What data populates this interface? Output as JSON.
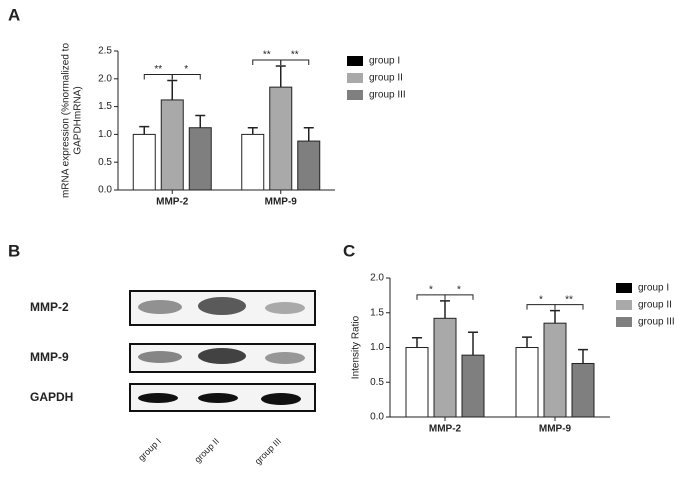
{
  "chart_data": [
    {
      "type": "bar",
      "panel": "A",
      "ylabel": [
        "mRNA expression (%normalized to",
        "GAPDHmRNA)"
      ],
      "categories": [
        "MMP-2",
        "MMP-9"
      ],
      "series": [
        {
          "name": "group I",
          "color": "#ffffff",
          "legend_color": "#000000",
          "values": [
            1.0,
            1.0
          ],
          "errors": [
            0.14,
            0.12
          ]
        },
        {
          "name": "group II",
          "color": "#a9a9a9",
          "legend_color": "#a9a9a9",
          "values": [
            1.62,
            1.85
          ],
          "errors": [
            0.35,
            0.38
          ]
        },
        {
          "name": "group III",
          "color": "#7f7f7f",
          "legend_color": "#7f7f7f",
          "values": [
            1.12,
            0.88
          ],
          "errors": [
            0.22,
            0.24
          ]
        }
      ],
      "significance": [
        {
          "category": "MMP-2",
          "pair": [
            "group I",
            "group II"
          ],
          "label": "**"
        },
        {
          "category": "MMP-2",
          "pair": [
            "group II",
            "group III"
          ],
          "label": "*"
        },
        {
          "category": "MMP-9",
          "pair": [
            "group I",
            "group II"
          ],
          "label": "**"
        },
        {
          "category": "MMP-9",
          "pair": [
            "group II",
            "group III"
          ],
          "label": "**"
        }
      ],
      "ylim": [
        0,
        2.5
      ],
      "yticks": [
        {
          "value": 0,
          "label": "0.0"
        },
        {
          "value": 0.5,
          "label": "0.5"
        },
        {
          "value": 1,
          "label": "1.0"
        },
        {
          "value": 1.5,
          "label": "1.5"
        },
        {
          "value": 2,
          "label": "2.0"
        },
        {
          "value": 2.5,
          "label": "2.5"
        }
      ],
      "legend": "right"
    },
    {
      "type": "bar",
      "panel": "C",
      "ylabel": [
        "Intensity Ratio"
      ],
      "categories": [
        "MMP-2",
        "MMP-9"
      ],
      "series": [
        {
          "name": "group I",
          "color": "#ffffff",
          "legend_color": "#000000",
          "values": [
            1.0,
            1.0
          ],
          "errors": [
            0.14,
            0.15
          ]
        },
        {
          "name": "group II",
          "color": "#a9a9a9",
          "legend_color": "#a9a9a9",
          "values": [
            1.42,
            1.35
          ],
          "errors": [
            0.25,
            0.18
          ]
        },
        {
          "name": "group III",
          "color": "#7f7f7f",
          "legend_color": "#7f7f7f",
          "values": [
            0.89,
            0.77
          ],
          "errors": [
            0.33,
            0.2
          ]
        }
      ],
      "significance": [
        {
          "category": "MMP-2",
          "pair": [
            "group I",
            "group II"
          ],
          "label": "*"
        },
        {
          "category": "MMP-2",
          "pair": [
            "group II",
            "group III"
          ],
          "label": "*"
        },
        {
          "category": "MMP-9",
          "pair": [
            "group I",
            "group II"
          ],
          "label": "*"
        },
        {
          "category": "MMP-9",
          "pair": [
            "group II",
            "group III"
          ],
          "label": "**"
        }
      ],
      "ylim": [
        0,
        2
      ],
      "yticks": [
        {
          "value": 0,
          "label": "0.0"
        },
        {
          "value": 0.5,
          "label": "0.5"
        },
        {
          "value": 1,
          "label": "1.0"
        },
        {
          "value": 1.5,
          "label": "1.5"
        },
        {
          "value": 2,
          "label": "2.0"
        }
      ],
      "legend": "right"
    }
  ],
  "blot": {
    "panel": "B",
    "rows": [
      "MMP-2",
      "MMP-9",
      "GAPDH"
    ],
    "lanes": [
      "group I",
      "group II",
      "group III"
    ]
  }
}
